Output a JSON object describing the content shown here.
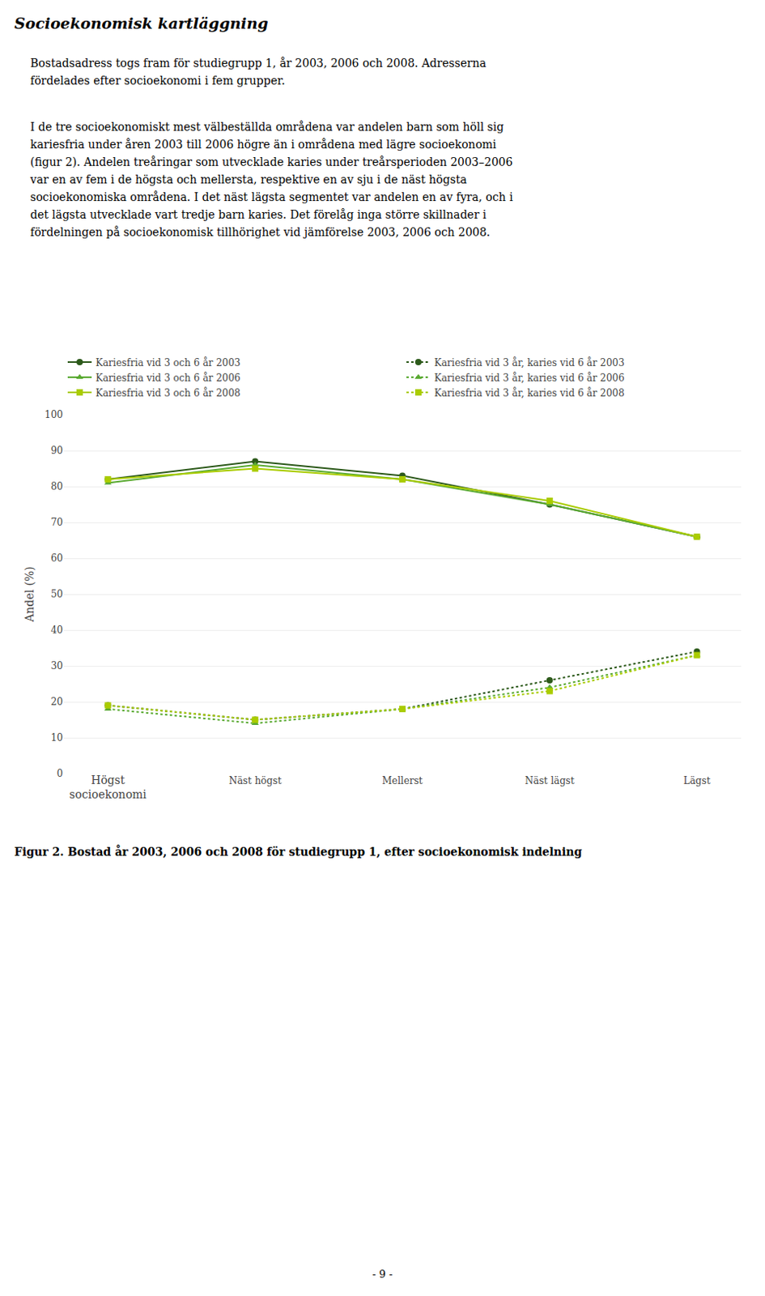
{
  "chart_data": {
    "type": "line",
    "title": "Socioekonomisk kartläggning",
    "paragraphs": [
      [
        "Bostadsadress togs fram för studiegrupp 1, år 2003, 2006 och 2008. Adresserna",
        "fördelades efter socioekonomi i fem grupper."
      ],
      [
        "I de tre socioekonomiskt mest välbeställda områdena var andelen barn som höll sig",
        "kariesfria under åren 2003 till 2006 högre än i områdena med lägre socioekonomi",
        "(figur 2). Andelen treåringar som utvecklade karies under treårsperioden 2003–2006",
        "var en av fem i de högsta och mellersta, respektive en av sju i de näst högsta",
        "socioekonomiska områdena. I det näst lägsta segmentet var andelen en av fyra, och i",
        "det lägsta utvecklade vart tredje barn karies. Det förelåg inga större skillnader i",
        "fördelningen på socioekonomisk tillhörighet vid jämförelse 2003, 2006 och 2008."
      ]
    ],
    "caption": "Figur 2. Bostad år 2003, 2006 och 2008 för studiegrupp 1, efter socioekonomisk indelning",
    "page_number": "- 9 -",
    "categories": [
      "Högst\nsocioekonomi",
      "Näst högst",
      "Mellerst",
      "Näst lägst",
      "Lägst"
    ],
    "ylabel": "Andel (%)",
    "ylim": [
      0,
      100
    ],
    "yticks": [
      0,
      10,
      20,
      30,
      40,
      50,
      60,
      70,
      80,
      90,
      100
    ],
    "grid": true,
    "legend": "top",
    "series": [
      {
        "name": "Kariesfria vid 3 och 6 år 2003",
        "color": "#2d5a1b",
        "marker": "circle",
        "line_style": "solid",
        "values": [
          82,
          87,
          83,
          75,
          66
        ]
      },
      {
        "name": "Kariesfria vid 3 och 6 år 2006",
        "color": "#5aaa32",
        "marker": "triangle-up",
        "line_style": "solid",
        "values": [
          81,
          86,
          82,
          75,
          66
        ]
      },
      {
        "name": "Kariesfria vid 3 och 6 år 2008",
        "color": "#aacc00",
        "marker": "square",
        "line_style": "solid",
        "values": [
          82,
          85,
          82,
          76,
          66
        ]
      },
      {
        "name": "Kariesfria vid 3 år, karies vid 6 år 2003",
        "color": "#2d5a1b",
        "marker": "circle",
        "line_style": "dot",
        "values": [
          19,
          15,
          18,
          26,
          34
        ]
      },
      {
        "name": "Kariesfria vid 3 år, karies vid 6 år 2006",
        "color": "#5aaa32",
        "marker": "triangle-up",
        "line_style": "dot",
        "values": [
          18,
          14,
          18,
          24,
          33
        ]
      },
      {
        "name": "Kariesfria vid 3 år, karies vid 6 år 2008",
        "color": "#aacc00",
        "marker": "square",
        "line_style": "dot",
        "values": [
          19,
          15,
          18,
          23,
          33
        ]
      }
    ]
  }
}
